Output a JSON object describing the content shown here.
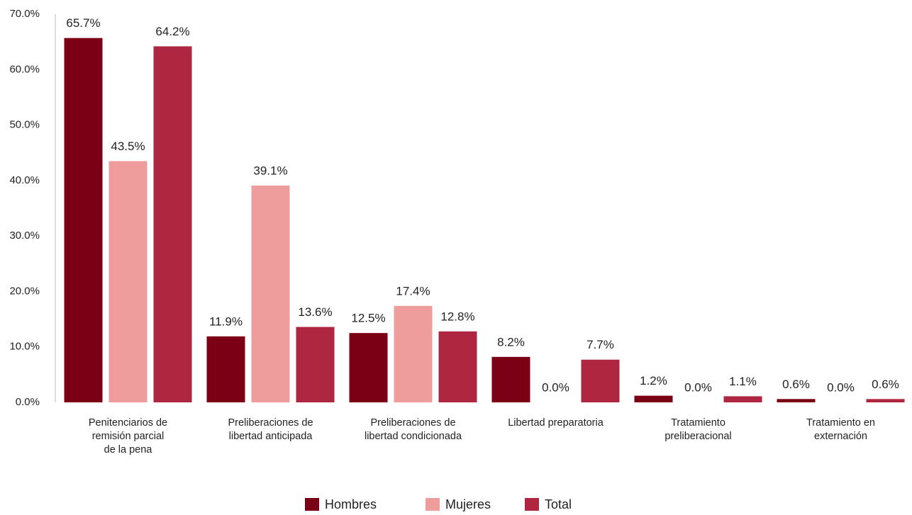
{
  "chart_data": {
    "type": "bar",
    "categories": [
      "Penitenciarios de\nremisión parcial\nde la pena",
      "Preliberaciones de\nlibertad anticipada",
      "Preliberaciones de\nlibertad condicionada",
      "Libertad preparatoria",
      "Tratamiento\npreliberacional",
      "Tratamiento en\nexternación"
    ],
    "series": [
      {
        "name": "Hombres",
        "color": "#7b0016",
        "values": [
          65.7,
          11.9,
          12.5,
          8.2,
          1.2,
          0.6
        ],
        "value_labels": [
          "65.7%",
          "11.9%",
          "12.5%",
          "8.2%",
          "1.2%",
          "0.6%"
        ]
      },
      {
        "name": "Mujeres",
        "color": "#ee9c9c",
        "values": [
          43.5,
          39.1,
          17.4,
          0.0,
          0.0,
          0.0
        ],
        "value_labels": [
          "43.5%",
          "39.1%",
          "17.4%",
          "0.0%",
          "0.0%",
          "0.0%"
        ]
      },
      {
        "name": "Total",
        "color": "#ae2640",
        "values": [
          64.2,
          13.6,
          12.8,
          7.7,
          1.1,
          0.6
        ],
        "value_labels": [
          "64.2%",
          "13.6%",
          "12.8%",
          "7.7%",
          "1.1%",
          "0.6%"
        ]
      }
    ],
    "ylim": [
      0,
      70
    ],
    "yticks": [
      {
        "value": 0,
        "label": "0.0%"
      },
      {
        "value": 10,
        "label": "10.0%"
      },
      {
        "value": 20,
        "label": "20.0%"
      },
      {
        "value": 30,
        "label": "30.0%"
      },
      {
        "value": 40,
        "label": "40.0%"
      },
      {
        "value": 50,
        "label": "50.0%"
      },
      {
        "value": 60,
        "label": "60.0%"
      },
      {
        "value": 70,
        "label": "70.0%"
      }
    ],
    "grid": false,
    "legend": "bottom"
  }
}
